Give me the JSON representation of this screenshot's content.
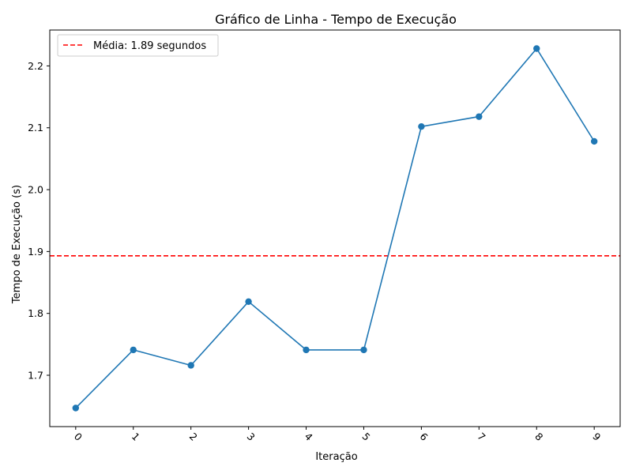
{
  "chart_data": {
    "type": "line",
    "title": "Gráfico de Linha - Tempo de Execução",
    "xlabel": "Iteração",
    "ylabel": "Tempo de Execução (s)",
    "x": [
      0,
      1,
      2,
      3,
      4,
      5,
      6,
      7,
      8,
      9
    ],
    "x_tick_labels": [
      "0",
      "1",
      "2",
      "3",
      "4",
      "5",
      "6",
      "7",
      "8",
      "9"
    ],
    "y": [
      1.647,
      1.741,
      1.716,
      1.819,
      1.741,
      1.741,
      2.102,
      2.118,
      2.228,
      2.078
    ],
    "y_ticks": [
      1.7,
      1.8,
      1.9,
      2.0,
      2.1,
      2.2
    ],
    "y_tick_labels": [
      "1.7",
      "1.8",
      "1.9",
      "2.0",
      "2.1",
      "2.2"
    ],
    "xlim": [
      -0.45,
      9.45
    ],
    "ylim": [
      1.617,
      2.258
    ],
    "mean_line": {
      "value": 1.893,
      "label": "Média: 1.89 segundos",
      "color": "#ff0000",
      "style": "dashed"
    },
    "line_color": "#1f77b4",
    "grid": false,
    "legend_position": "top-left"
  }
}
